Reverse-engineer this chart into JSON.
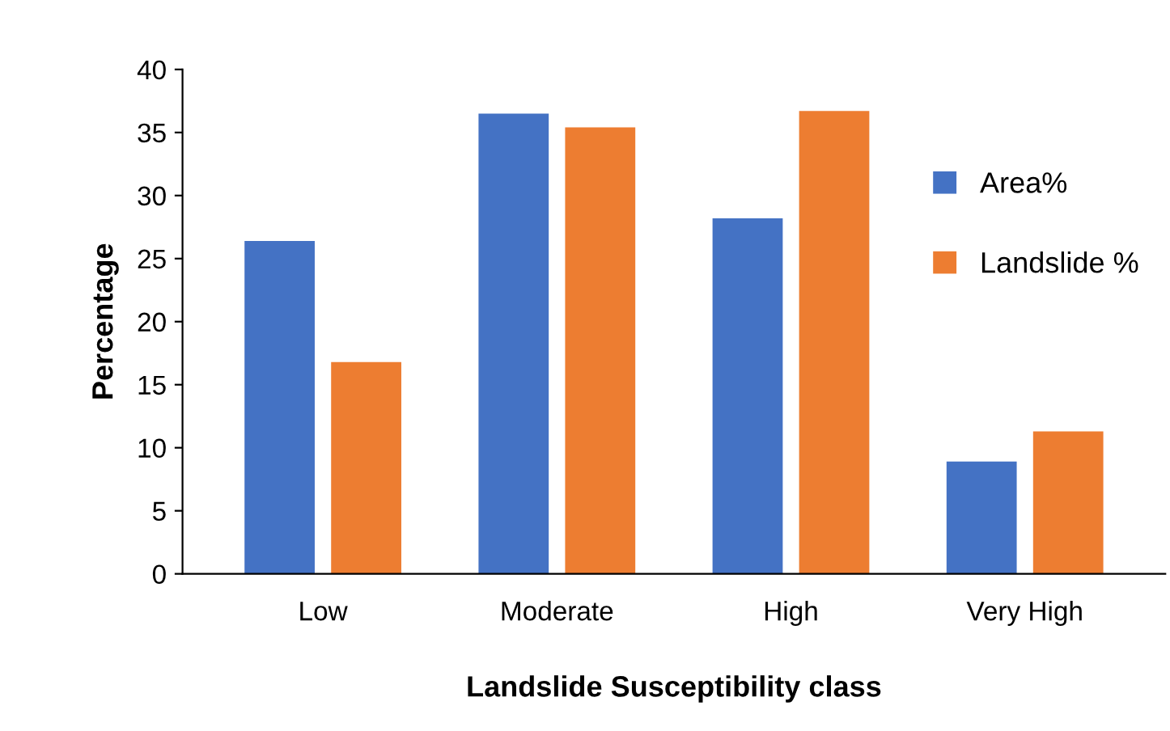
{
  "chart_data": {
    "type": "bar",
    "xlabel": "Landslide Susceptibility class",
    "ylabel": "Percentage",
    "categories": [
      "Low",
      "Moderate",
      "High",
      "Very High"
    ],
    "series": [
      {
        "name": "Area%",
        "color": "#4472c4",
        "values": [
          26.4,
          36.5,
          28.2,
          8.9
        ]
      },
      {
        "name": "Landslide %",
        "color": "#ed7d31",
        "values": [
          16.8,
          35.4,
          36.7,
          11.3
        ]
      }
    ],
    "ylim": [
      0,
      40
    ],
    "yticks": [
      0,
      5,
      10,
      15,
      20,
      25,
      30,
      35,
      40
    ],
    "grid": false,
    "legend": "top right"
  }
}
